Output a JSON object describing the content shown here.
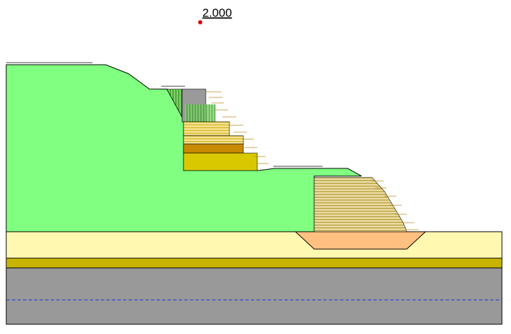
{
  "factor_of_safety": "2.000"
}
